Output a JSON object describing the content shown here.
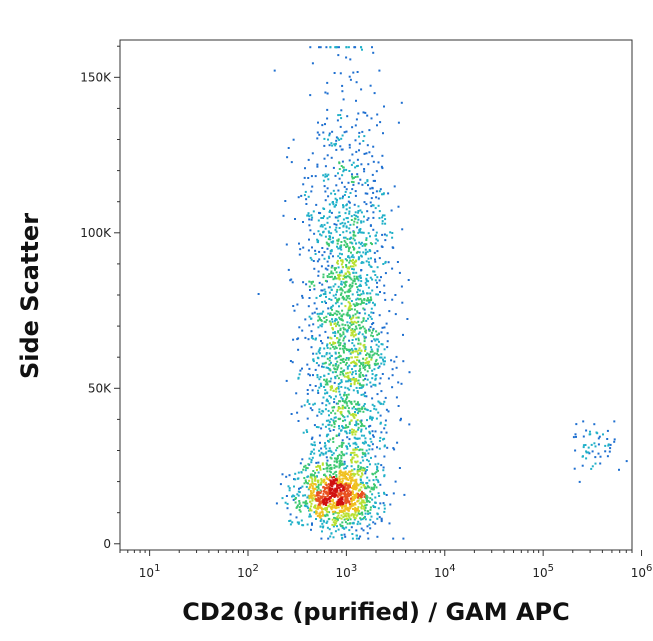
{
  "chart_data": {
    "type": "scatter",
    "title": "",
    "xlabel": "CD203c (purified) / GAM APC",
    "ylabel": "Side Scatter",
    "x_scale": "log",
    "xlim": [
      5,
      800000
    ],
    "ylim": [
      -2000,
      162000
    ],
    "x_ticks": [
      {
        "value": 10,
        "base": "10",
        "exp": "1"
      },
      {
        "value": 100,
        "base": "10",
        "exp": "2"
      },
      {
        "value": 1000,
        "base": "10",
        "exp": "3"
      },
      {
        "value": 10000,
        "base": "10",
        "exp": "4"
      },
      {
        "value": 100000,
        "base": "10",
        "exp": "5"
      },
      {
        "value": 1000000,
        "base": "10",
        "exp": "6"
      }
    ],
    "y_ticks": [
      {
        "value": 0,
        "label": "0"
      },
      {
        "value": 50000,
        "label": "50K"
      },
      {
        "value": 100000,
        "label": "100K"
      },
      {
        "value": 150000,
        "label": "150K"
      }
    ],
    "grid": false,
    "density_colors": [
      "#1f2f9a",
      "#1e6fd0",
      "#20b0c8",
      "#3cc870",
      "#b8e030",
      "#f0c020",
      "#e85020",
      "#d01010"
    ],
    "populations": [
      {
        "name": "",
        "x_center": 1000,
        "y_center": 70000,
        "log_x_sd": 0.18,
        "y_sd": 35000,
        "count": 2200
      },
      {
        "name": "",
        "x_center": 750,
        "y_center": 16000,
        "log_x_sd": 0.17,
        "y_sd": 5000,
        "count": 900
      },
      {
        "name": "",
        "x_center": 350000,
        "y_center": 31000,
        "log_x_sd": 0.12,
        "y_sd": 5000,
        "count": 60
      }
    ]
  }
}
